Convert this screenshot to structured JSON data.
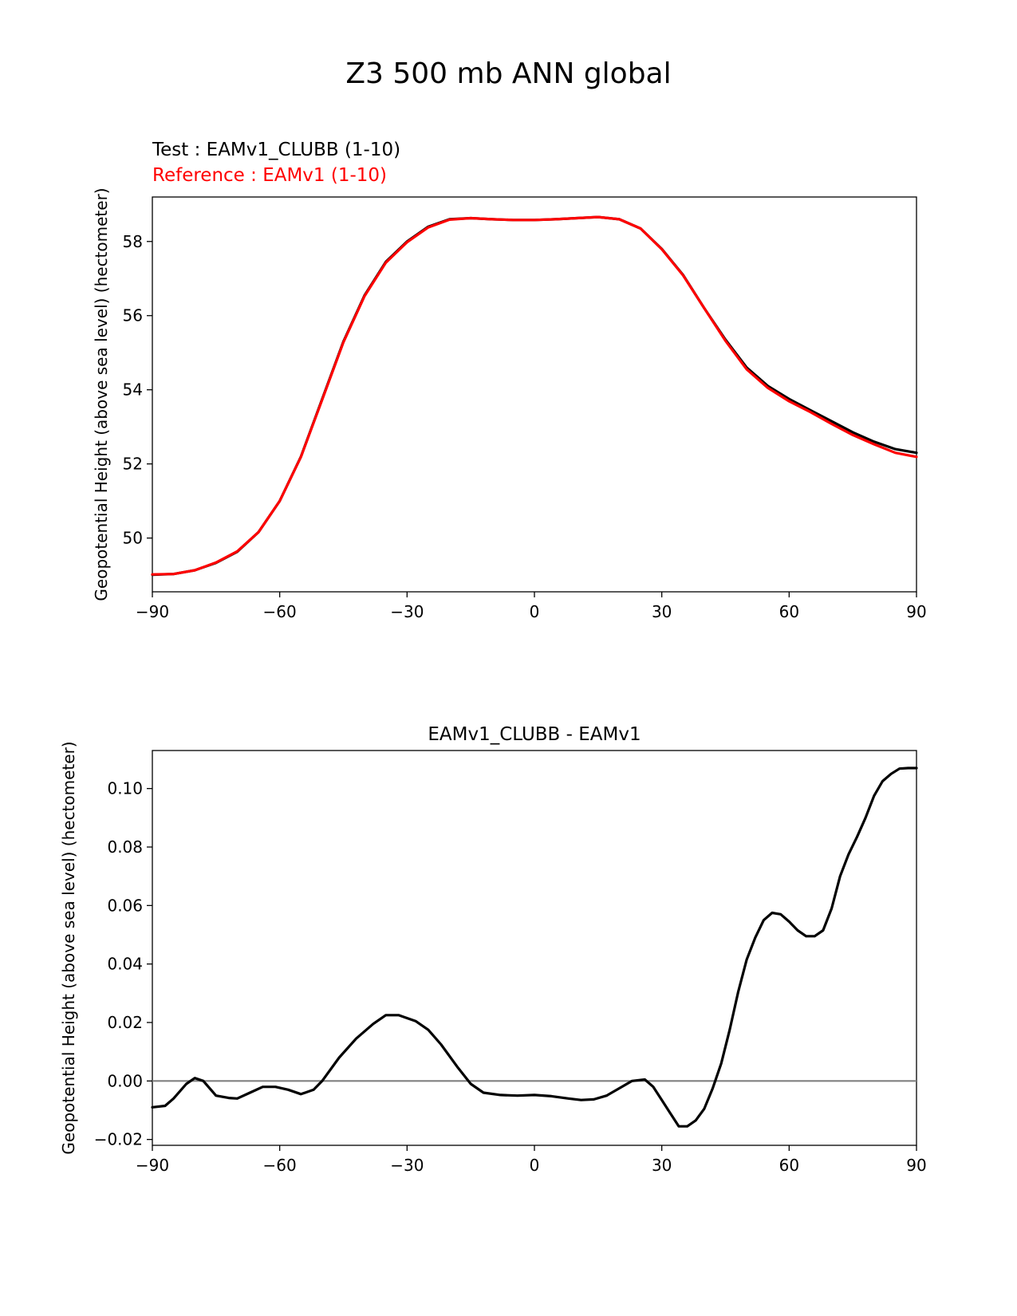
{
  "figure": {
    "title": "Z3 500 mb ANN global",
    "test_label": "Test : EAMv1_CLUBB (1-10)",
    "reference_label": "Reference : EAMv1 (1-10)"
  },
  "colors": {
    "test": "#000000",
    "reference": "#ff0000",
    "zero_line": "#808080"
  },
  "chart_data": [
    {
      "type": "line",
      "title": "",
      "xlabel": "",
      "ylabel": "Geopotential Height (above sea level) (hectometer)",
      "xlim": [
        -90,
        90
      ],
      "ylim": [
        48.55,
        59.2
      ],
      "xticks": [
        -90,
        -60,
        -30,
        0,
        30,
        60,
        90
      ],
      "xtick_labels": [
        "−90",
        "−60",
        "−30",
        "0",
        "30",
        "60",
        "90"
      ],
      "yticks": [
        50,
        52,
        54,
        56,
        58
      ],
      "ytick_labels": [
        "50",
        "52",
        "54",
        "56",
        "58"
      ],
      "grid": false,
      "series": [
        {
          "name": "Test : EAMv1_CLUBB (1-10)",
          "color": "#000000",
          "x": [
            -90,
            -85,
            -80,
            -75,
            -70,
            -65,
            -60,
            -55,
            -50,
            -45,
            -40,
            -35,
            -30,
            -25,
            -20,
            -15,
            -10,
            -5,
            0,
            5,
            10,
            15,
            20,
            25,
            30,
            35,
            40,
            45,
            50,
            55,
            60,
            65,
            70,
            75,
            80,
            85,
            90
          ],
          "y": [
            49.01,
            49.03,
            49.13,
            49.33,
            49.63,
            50.16,
            51.0,
            52.2,
            53.75,
            55.3,
            56.55,
            57.45,
            58.0,
            58.4,
            58.6,
            58.63,
            58.6,
            58.58,
            58.58,
            58.6,
            58.63,
            58.66,
            58.6,
            58.35,
            57.8,
            57.1,
            56.2,
            55.35,
            54.6,
            54.1,
            53.75,
            53.45,
            53.15,
            52.85,
            52.6,
            52.4,
            52.3
          ]
        },
        {
          "name": "Reference : EAMv1 (1-10)",
          "color": "#ff0000",
          "x": [
            -90,
            -85,
            -80,
            -75,
            -70,
            -65,
            -60,
            -55,
            -50,
            -45,
            -40,
            -35,
            -30,
            -25,
            -20,
            -15,
            -10,
            -5,
            0,
            5,
            10,
            15,
            20,
            25,
            30,
            35,
            40,
            45,
            50,
            55,
            60,
            65,
            70,
            75,
            80,
            85,
            90
          ],
          "y": [
            49.02,
            49.03,
            49.13,
            49.34,
            49.64,
            50.16,
            51.0,
            52.19,
            53.73,
            55.28,
            56.53,
            57.43,
            57.98,
            58.38,
            58.59,
            58.63,
            58.6,
            58.58,
            58.58,
            58.6,
            58.63,
            58.66,
            58.6,
            58.35,
            57.79,
            57.09,
            56.2,
            55.32,
            54.55,
            54.05,
            53.69,
            53.4,
            53.08,
            52.78,
            52.53,
            52.3,
            52.19
          ]
        }
      ]
    },
    {
      "type": "line",
      "title": "EAMv1_CLUBB - EAMv1",
      "xlabel": "",
      "ylabel": "Geopotential Height (above sea level) (hectometer)",
      "xlim": [
        -90,
        90
      ],
      "ylim": [
        -0.022,
        0.113
      ],
      "xticks": [
        -90,
        -60,
        -30,
        0,
        30,
        60,
        90
      ],
      "xtick_labels": [
        "−90",
        "−60",
        "−30",
        "0",
        "30",
        "60",
        "90"
      ],
      "yticks": [
        -0.02,
        0.0,
        0.02,
        0.04,
        0.06,
        0.08,
        0.1
      ],
      "ytick_labels": [
        "−0.02",
        "0.00",
        "0.02",
        "0.04",
        "0.06",
        "0.08",
        "0.10"
      ],
      "grid": false,
      "zero_line": 0,
      "series": [
        {
          "name": "EAMv1_CLUBB - EAMv1",
          "color": "#000000",
          "x": [
            -90,
            -87,
            -85,
            -82,
            -80,
            -78,
            -75,
            -72,
            -70,
            -67,
            -64,
            -61,
            -58,
            -55,
            -52,
            -50,
            -46,
            -42,
            -38,
            -35,
            -32,
            -28,
            -25,
            -22,
            -18,
            -15,
            -12,
            -8,
            -4,
            0,
            4,
            8,
            11,
            14,
            17,
            20,
            23,
            26,
            28,
            30,
            32,
            34,
            36,
            38,
            40,
            42,
            44,
            46,
            48,
            50,
            52,
            54,
            56,
            58,
            60,
            62,
            64,
            66,
            68,
            70,
            72,
            74,
            76,
            78,
            80,
            82,
            84,
            86,
            88,
            90
          ],
          "y": [
            -0.009,
            -0.0085,
            -0.006,
            -0.001,
            0.001,
            0.0,
            -0.005,
            -0.0058,
            -0.006,
            -0.004,
            -0.002,
            -0.002,
            -0.003,
            -0.0045,
            -0.003,
            0.0,
            0.008,
            0.0145,
            0.0195,
            0.0225,
            0.0225,
            0.0205,
            0.0175,
            0.0125,
            0.0045,
            -0.001,
            -0.004,
            -0.0048,
            -0.005,
            -0.0048,
            -0.0052,
            -0.006,
            -0.0065,
            -0.0063,
            -0.005,
            -0.0025,
            0.0,
            0.0005,
            -0.002,
            -0.0065,
            -0.011,
            -0.0155,
            -0.0155,
            -0.0135,
            -0.0095,
            -0.0025,
            0.006,
            0.0175,
            0.0305,
            0.0415,
            0.049,
            0.055,
            0.0575,
            0.057,
            0.0545,
            0.0515,
            0.0495,
            0.0495,
            0.0515,
            0.059,
            0.07,
            0.0775,
            0.0835,
            0.09,
            0.0975,
            0.1025,
            0.105,
            0.1068,
            0.107,
            0.107
          ]
        }
      ]
    }
  ]
}
